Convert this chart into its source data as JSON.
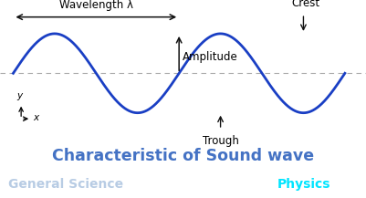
{
  "fig_width": 4.01,
  "fig_height": 2.17,
  "dpi": 100,
  "bg_color": "#ffffff",
  "wave_color": "#1a3fc4",
  "wave_linewidth": 2.0,
  "dashed_line_color": "#aaaaaa",
  "arrow_color": "#111111",
  "title_text": "Characteristic of Sound wave",
  "title_color": "#4472c4",
  "title_fontsize": 12.5,
  "title_fontweight": "bold",
  "footer_bg_color": "#6e8faf",
  "footer_text_left": "General Science",
  "footer_text_right": "Physics",
  "footer_text_color_left": "#b8cce4",
  "footer_text_color_right": "#00e5ff",
  "footer_fontsize": 10,
  "footer_fontweight": "bold",
  "wavelength_label": "Wavelength λ",
  "amplitude_label": "Amplitude",
  "crest_label": "Crest",
  "trough_label": "Trough",
  "ylabel": "y",
  "xlabel": "x",
  "annotation_fontsize": 8.5
}
